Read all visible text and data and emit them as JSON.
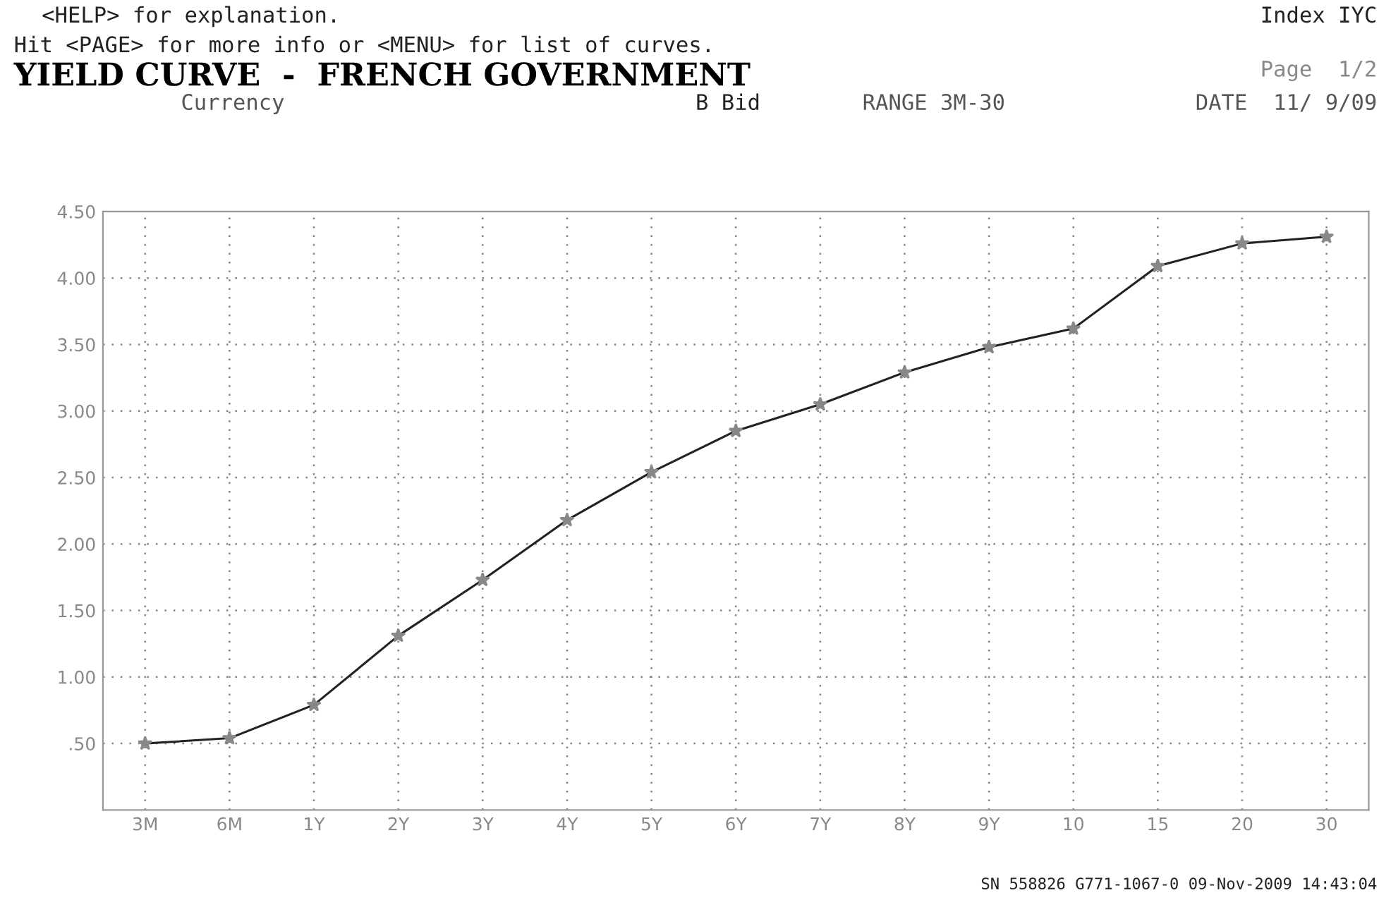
{
  "chart_data": {
    "type": "line",
    "title": "YIELD CURVE  -  FRENCH GOVERNMENT",
    "annotations": [
      "<HELP> for explanation.",
      "Hit <PAGE> for more info or <MENU> for list of curves.",
      "Index IYC",
      "Page  1/2",
      "Currency",
      "B Bid",
      "RANGE 3M-30",
      "DATE  11/ 9/09",
      "SN 558826 G771-1067-0 09-Nov-2009 14:43:04"
    ],
    "categories": [
      "3M",
      "6M",
      "1Y",
      "2Y",
      "3Y",
      "4Y",
      "5Y",
      "6Y",
      "7Y",
      "8Y",
      "9Y",
      "10",
      "15",
      "20",
      "30"
    ],
    "series": [
      {
        "color": "#222222",
        "values": [
          0.5,
          0.54,
          0.79,
          1.31,
          1.73,
          2.18,
          2.54,
          2.85,
          3.05,
          3.29,
          3.48,
          3.62,
          4.09,
          4.26,
          4.31
        ]
      }
    ],
    "marker": "star",
    "line_style": "solid",
    "ylim": [
      0,
      4.5
    ],
    "yticks": [
      {
        "value": 0.5,
        "label": ".50"
      },
      {
        "value": 1.0,
        "label": "1.00"
      },
      {
        "value": 1.5,
        "label": "1.50"
      },
      {
        "value": 2.0,
        "label": "2.00"
      },
      {
        "value": 2.5,
        "label": "2.50"
      },
      {
        "value": 3.0,
        "label": "3.00"
      },
      {
        "value": 3.5,
        "label": "3.50"
      },
      {
        "value": 4.0,
        "label": "4.00"
      },
      {
        "value": 4.5,
        "label": "4.50"
      }
    ],
    "grid": true,
    "legend": false
  }
}
